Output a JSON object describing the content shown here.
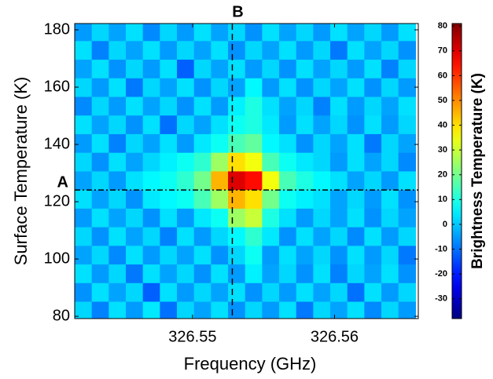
{
  "chart_data": {
    "type": "heatmap",
    "xlabel": "Frequency (GHz)",
    "ylabel": "Surface Temperature (K)",
    "colorbar_label": "Brightness Temperature (K)",
    "colormap": "jet",
    "xlim": [
      326.5417,
      326.5659
    ],
    "ylim": [
      79.2,
      182.2
    ],
    "xticks": [
      326.55,
      326.56
    ],
    "yticks": [
      80,
      100,
      120,
      140,
      160,
      180
    ],
    "zlim": [
      -38,
      81
    ],
    "zticks": [
      -30,
      -20,
      -10,
      0,
      10,
      20,
      30,
      40,
      50,
      60,
      70,
      80
    ],
    "x": [
      326.5423,
      326.5435,
      326.5447,
      326.5459,
      326.5471,
      326.5483,
      326.5495,
      326.5507,
      326.5519,
      326.5531,
      326.5543,
      326.5555,
      326.5567,
      326.5579,
      326.5591,
      326.5603,
      326.5615,
      326.5627,
      326.5639,
      326.5651
    ],
    "y": [
      82,
      88.5,
      95,
      101.5,
      108,
      114.5,
      121,
      127.5,
      134,
      140.5,
      147,
      153.5,
      160,
      166.5,
      173,
      179.5
    ],
    "z": [
      [
        2,
        -8,
        3,
        -5,
        4,
        -10,
        2,
        -4,
        3,
        -6,
        2,
        -5,
        3,
        -9,
        2,
        -4,
        3,
        -7,
        2,
        -5
      ],
      [
        -6,
        3,
        -4,
        2,
        -12,
        3,
        -5,
        2,
        -4,
        3,
        -6,
        2,
        -5,
        3,
        -4,
        2,
        -10,
        3,
        -5,
        2
      ],
      [
        3,
        -5,
        2,
        -9,
        3,
        -4,
        2,
        -6,
        3,
        -5,
        5,
        -4,
        2,
        -6,
        3,
        -8,
        2,
        -4,
        3,
        -6
      ],
      [
        -4,
        2,
        -7,
        3,
        -5,
        2,
        -4,
        3,
        -6,
        2,
        8,
        -5,
        3,
        -4,
        2,
        -6,
        3,
        -5,
        2,
        -9
      ],
      [
        2,
        -6,
        3,
        -4,
        2,
        -8,
        3,
        -5,
        2,
        6,
        12,
        4,
        -6,
        3,
        -4,
        2,
        -7,
        3,
        -5,
        2
      ],
      [
        -5,
        3,
        -4,
        2,
        -6,
        3,
        -5,
        4,
        8,
        25,
        30,
        10,
        3,
        -5,
        2,
        -4,
        3,
        -6,
        2,
        -4
      ],
      [
        3,
        -4,
        2,
        -6,
        4,
        6,
        8,
        15,
        25,
        45,
        40,
        20,
        8,
        5,
        3,
        -4,
        2,
        -5,
        3,
        -6
      ],
      [
        -4,
        2,
        -5,
        3,
        6,
        8,
        12,
        20,
        45,
        70,
        65,
        35,
        15,
        10,
        6,
        3,
        -4,
        2,
        -5,
        3
      ],
      [
        2,
        -6,
        3,
        -4,
        2,
        5,
        8,
        12,
        25,
        40,
        35,
        15,
        8,
        4,
        2,
        -5,
        3,
        -4,
        2,
        -7
      ],
      [
        -5,
        3,
        -8,
        2,
        -4,
        3,
        -5,
        4,
        8,
        15,
        18,
        6,
        3,
        -6,
        2,
        -4,
        3,
        -9,
        2,
        -4
      ],
      [
        3,
        -4,
        2,
        -6,
        3,
        -10,
        2,
        -4,
        3,
        8,
        10,
        4,
        -5,
        3,
        -4,
        2,
        -6,
        3,
        -5,
        2
      ],
      [
        -7,
        2,
        -5,
        3,
        -4,
        2,
        -6,
        3,
        -5,
        5,
        10,
        3,
        -4,
        2,
        -8,
        3,
        -5,
        2,
        -4,
        3
      ],
      [
        2,
        -5,
        3,
        -9,
        2,
        -4,
        3,
        -6,
        2,
        -4,
        6,
        -5,
        3,
        -6,
        2,
        -4,
        3,
        -6,
        2,
        -5
      ],
      [
        -4,
        3,
        -6,
        2,
        -5,
        3,
        -12,
        2,
        -4,
        3,
        -5,
        2,
        -6,
        3,
        -4,
        2,
        -5,
        3,
        -8,
        2
      ],
      [
        3,
        -8,
        2,
        -4,
        3,
        -5,
        2,
        -4,
        3,
        -6,
        2,
        -4,
        3,
        -5,
        2,
        -9,
        3,
        -4,
        2,
        -6
      ],
      [
        -5,
        2,
        -4,
        3,
        -7,
        2,
        -5,
        3,
        -4,
        2,
        -6,
        3,
        -4,
        2,
        -5,
        3,
        -4,
        2,
        -5,
        3
      ]
    ],
    "annotations": [
      {
        "text": "A",
        "y": 124.1
      },
      {
        "text": "B",
        "x": 326.5528
      }
    ]
  }
}
